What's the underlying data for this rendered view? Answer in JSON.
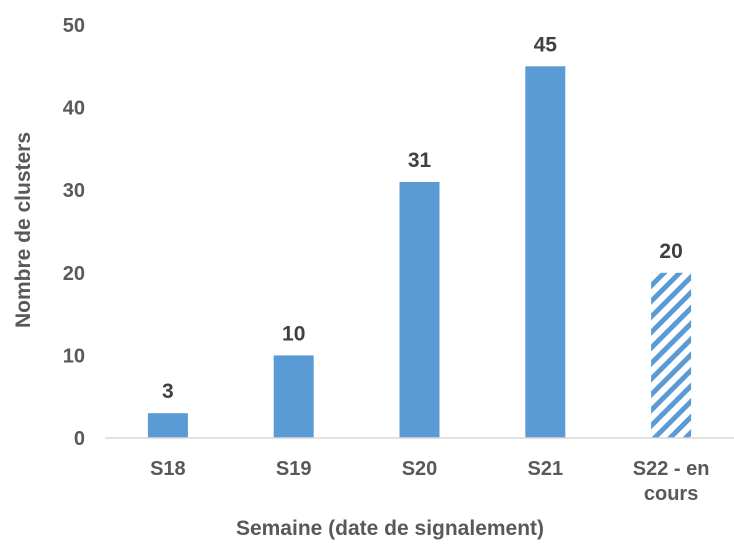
{
  "chart_data": {
    "type": "bar",
    "categories": [
      "S18",
      "S19",
      "S20",
      "S21",
      "S22 - en cours"
    ],
    "values": [
      3,
      10,
      31,
      45,
      20
    ],
    "data_labels": [
      "3",
      "10",
      "31",
      "45",
      "20"
    ],
    "patterned": [
      false,
      false,
      false,
      false,
      true
    ],
    "xlabel": "Semaine (date de signalement)",
    "ylabel": "Nombre de clusters",
    "ylim": [
      0,
      50
    ],
    "yticks": [
      0,
      10,
      20,
      30,
      40,
      50
    ],
    "grid": false,
    "legend": "none",
    "colors": {
      "bar": "#5B9BD5",
      "axis": "#D9D9D9",
      "text": "#595959",
      "label": "#404040"
    }
  }
}
